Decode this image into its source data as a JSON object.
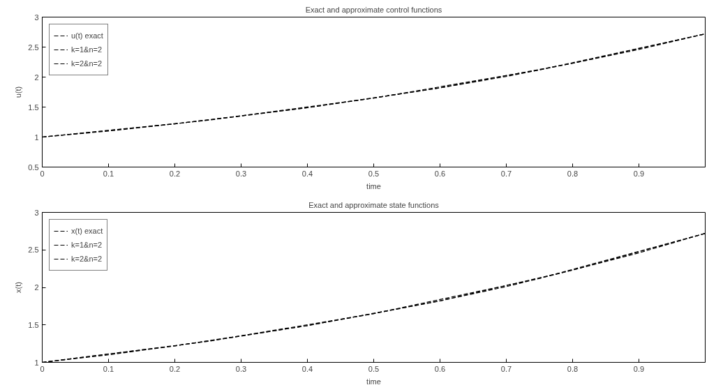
{
  "chart_data": [
    {
      "type": "line",
      "title": "Exact and approximate control functions",
      "xlabel": "time",
      "ylabel": "u(t)",
      "x": [
        0,
        0.1,
        0.2,
        0.3,
        0.4,
        0.5,
        0.6,
        0.7,
        0.8,
        0.9,
        1
      ],
      "xlim": [
        0,
        1
      ],
      "xticks": [
        0,
        0.1,
        0.2,
        0.3,
        0.4,
        0.5,
        0.6,
        0.7,
        0.8,
        0.9
      ],
      "ylim": [
        0.5,
        3
      ],
      "yticks": [
        0.5,
        1,
        1.5,
        2,
        2.5,
        3
      ],
      "legend": "top left",
      "grid": false,
      "line_style": "dashed",
      "marker": "none",
      "series": [
        {
          "name": "u(t) exact",
          "color": "#000000",
          "values": [
            1,
            1.1,
            1.22,
            1.35,
            1.49,
            1.65,
            1.82,
            2.01,
            2.23,
            2.46,
            2.72
          ]
        },
        {
          "name": "k=1&n=2",
          "color": "#000000",
          "x": [
            0,
            0.2,
            0.4,
            0.6,
            0.8,
            1
          ],
          "values": [
            1,
            1.22,
            1.49,
            1.82,
            2.23,
            2.72
          ]
        },
        {
          "name": "k=2&n=2",
          "color": "#000000",
          "x": [
            0,
            0.25,
            0.5,
            0.75,
            1
          ],
          "values": [
            1,
            1.28,
            1.65,
            2.12,
            2.72
          ]
        }
      ]
    },
    {
      "type": "line",
      "title": "Exact and approximate state functions",
      "xlabel": "time",
      "ylabel": "x(t)",
      "x": [
        0,
        0.1,
        0.2,
        0.3,
        0.4,
        0.5,
        0.6,
        0.7,
        0.8,
        0.9,
        1
      ],
      "xlim": [
        0,
        1
      ],
      "xticks": [
        0,
        0.1,
        0.2,
        0.3,
        0.4,
        0.5,
        0.6,
        0.7,
        0.8,
        0.9
      ],
      "ylim": [
        1,
        3
      ],
      "yticks": [
        1,
        1.5,
        2,
        2.5,
        3
      ],
      "legend": "top left",
      "grid": false,
      "line_style": "dashed",
      "marker": "none",
      "series": [
        {
          "name": "x(t) exact",
          "color": "#000000",
          "values": [
            1,
            1.1,
            1.22,
            1.35,
            1.49,
            1.65,
            1.82,
            2.01,
            2.23,
            2.46,
            2.72
          ]
        },
        {
          "name": "k=1&n=2",
          "color": "#000000",
          "x": [
            0,
            0.2,
            0.4,
            0.6,
            0.8,
            1
          ],
          "values": [
            1,
            1.22,
            1.49,
            1.82,
            2.23,
            2.72
          ]
        },
        {
          "name": "k=2&n=2",
          "color": "#000000",
          "x": [
            0,
            0.25,
            0.5,
            0.75,
            1
          ],
          "values": [
            1,
            1.28,
            1.65,
            2.12,
            2.72
          ]
        }
      ]
    }
  ]
}
